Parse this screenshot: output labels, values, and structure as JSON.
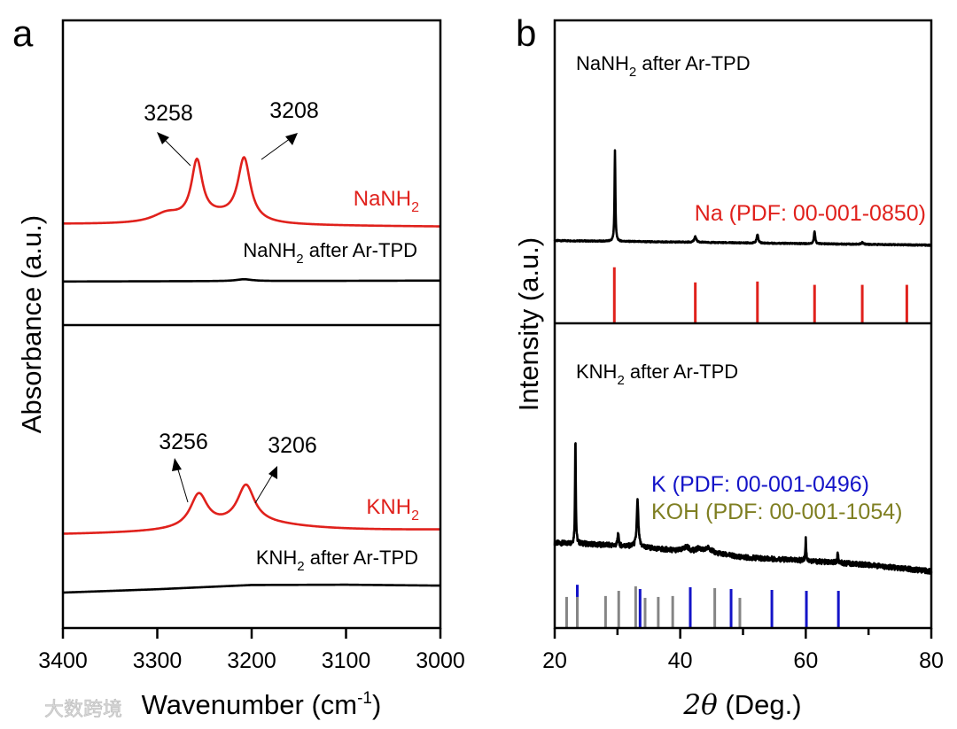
{
  "chart_data": [
    {
      "panel": "a",
      "type": "line",
      "xlabel": {
        "main": "Wavenumber (cm",
        "sup": "-1",
        "close": ")"
      },
      "ylabel": "Absorbance (a.u.)",
      "xlim": [
        3400,
        3000
      ],
      "xticks": [
        3400,
        3300,
        3200,
        3100,
        3000
      ],
      "colors": {
        "sample": "#e0211c",
        "after": "#000000"
      },
      "subplots": [
        {
          "name": "NaNH2",
          "ylim": [
            0,
            1
          ],
          "series": [
            {
              "name": "NaNH2",
              "label": {
                "main": "NaNH",
                "sub": "2",
                "rest": ""
              },
              "color": "#e0211c",
              "baseline_points": [
                [
                  3400,
                  0.331
                ],
                [
                  3000,
                  0.323
                ]
              ],
              "peaks": [
                {
                  "center": 3258,
                  "height": 0.19,
                  "hwhm": 7
                },
                {
                  "center": 3208,
                  "height": 0.205,
                  "hwhm": 8
                },
                {
                  "center": 3290,
                  "height": 0.03,
                  "hwhm": 18
                },
                {
                  "center": 3235,
                  "height": 0.025,
                  "hwhm": 30
                }
              ]
            },
            {
              "name": "NaNH2 after Ar-TPD",
              "label": {
                "main": "NaNH",
                "sub": "2",
                "rest": " after Ar-TPD"
              },
              "color": "#000000",
              "baseline_points": [
                [
                  3400,
                  0.143
                ],
                [
                  3000,
                  0.146
                ]
              ],
              "peaks": [
                {
                  "center": 3208,
                  "height": 0.006,
                  "hwhm": 10
                }
              ]
            }
          ],
          "annotations": [
            {
              "text": "3258",
              "peak": 3258
            },
            {
              "text": "3208",
              "peak": 3208
            }
          ]
        },
        {
          "name": "KNH2",
          "ylim": [
            0,
            1
          ],
          "series": [
            {
              "name": "KNH2",
              "label": {
                "main": "KNH",
                "sub": "2",
                "rest": ""
              },
              "color": "#e0211c",
              "baseline_points": [
                [
                  3400,
                  0.307
                ],
                [
                  3300,
                  0.31
                ],
                [
                  3000,
                  0.322
                ]
              ],
              "peaks": [
                {
                  "center": 3256,
                  "height": 0.11,
                  "hwhm": 11
                },
                {
                  "center": 3206,
                  "height": 0.125,
                  "hwhm": 11
                },
                {
                  "center": 3200,
                  "height": 0.03,
                  "hwhm": 70
                }
              ]
            },
            {
              "name": "KNH2 after Ar-TPD",
              "label": {
                "main": "KNH",
                "sub": "2",
                "rest": " after Ar-TPD"
              },
              "color": "#000000",
              "baseline_points": [
                [
                  3400,
                  0.117
                ],
                [
                  3300,
                  0.128
                ],
                [
                  3200,
                  0.142
                ],
                [
                  3100,
                  0.143
                ],
                [
                  3000,
                  0.14
                ]
              ],
              "peaks": []
            }
          ],
          "annotations": [
            {
              "text": "3256",
              "peak": 3256
            },
            {
              "text": "3206",
              "peak": 3206
            }
          ]
        }
      ]
    },
    {
      "panel": "b",
      "type": "line",
      "xlabel": {
        "symbol": "2θ",
        "rest": " (Deg.)"
      },
      "ylabel": "Intensity (a.u.)",
      "xlim": [
        20,
        80
      ],
      "xticks": [
        20,
        30,
        40,
        50,
        60,
        70,
        80
      ],
      "xticklabels": [
        "20",
        "",
        "40",
        "",
        "60",
        "",
        "80"
      ],
      "subplots": [
        {
          "name": "NaNH2 after Ar-TPD",
          "ylim": [
            0,
            1
          ],
          "title": {
            "main": "NaNH",
            "sub": "2",
            "rest": " after Ar-TPD"
          },
          "series": [
            {
              "name": "NaNH2 after Ar-TPD",
              "color": "#000000",
              "noise": 0.002,
              "baseline_points": [
                [
                  20,
                  0.273
                ],
                [
                  80,
                  0.258
                ]
              ],
              "peaks": [
                {
                  "center": 29.6,
                  "height": 0.3,
                  "hwhm": 0.08
                },
                {
                  "center": 42.4,
                  "height": 0.018,
                  "hwhm": 0.2
                },
                {
                  "center": 52.3,
                  "height": 0.028,
                  "hwhm": 0.15
                },
                {
                  "center": 61.4,
                  "height": 0.04,
                  "hwhm": 0.12
                },
                {
                  "center": 69.0,
                  "height": 0.006,
                  "hwhm": 0.2
                }
              ]
            }
          ],
          "references": [
            {
              "name": "Na (PDF: 00-001-0850)",
              "color": "#e0211c",
              "lines": [
                [
                  29.5,
                  0.185
                ],
                [
                  42.4,
                  0.135
                ],
                [
                  52.3,
                  0.138
                ],
                [
                  61.4,
                  0.127
                ],
                [
                  69.0,
                  0.127
                ],
                [
                  76.1,
                  0.127
                ]
              ]
            }
          ]
        },
        {
          "name": "KNH2 after Ar-TPD",
          "ylim": [
            0,
            1
          ],
          "title": {
            "main": "KNH",
            "sub": "2",
            "rest": " after Ar-TPD"
          },
          "series": [
            {
              "name": "KNH2 after Ar-TPD",
              "color": "#000000",
              "noise": 0.008,
              "baseline_points": [
                [
                  20,
                  0.279
                ],
                [
                  25,
                  0.276
                ],
                [
                  33,
                  0.267
                ],
                [
                  40,
                  0.253
                ],
                [
                  45,
                  0.247
                ],
                [
                  50,
                  0.232
                ],
                [
                  60,
                  0.221
                ],
                [
                  70,
                  0.207
                ],
                [
                  80,
                  0.186
                ]
              ],
              "peaks": [
                {
                  "center": 23.3,
                  "height": 0.36,
                  "hwhm": 0.07
                },
                {
                  "center": 30.1,
                  "height": 0.04,
                  "hwhm": 0.1
                },
                {
                  "center": 33.2,
                  "height": 0.15,
                  "hwhm": 0.15
                },
                {
                  "center": 41.0,
                  "height": 0.015,
                  "hwhm": 0.5
                },
                {
                  "center": 43.0,
                  "height": 0.012,
                  "hwhm": 0.4
                },
                {
                  "center": 44.5,
                  "height": 0.015,
                  "hwhm": 0.5
                },
                {
                  "center": 60.0,
                  "height": 0.07,
                  "hwhm": 0.08
                },
                {
                  "center": 65.1,
                  "height": 0.03,
                  "hwhm": 0.1
                }
              ]
            }
          ],
          "references": [
            {
              "name": "K (PDF: 00-001-0496)",
              "color": "#1414c8",
              "lines": [
                [
                  23.6,
                  0.142
                ],
                [
                  33.6,
                  0.128
                ],
                [
                  41.6,
                  0.134
                ],
                [
                  48.1,
                  0.128
                ],
                [
                  54.6,
                  0.125
                ],
                [
                  60.1,
                  0.122
                ],
                [
                  65.2,
                  0.122
                ]
              ]
            },
            {
              "name": "KOH (PDF: 00-001-1054)",
              "color": "#858585",
              "label_color": "#7f7f22",
              "lines": [
                [
                  21.9,
                  0.102
                ],
                [
                  23.6,
                  0.102
                ],
                [
                  28.1,
                  0.105
                ],
                [
                  30.2,
                  0.122
                ],
                [
                  32.9,
                  0.137
                ],
                [
                  34.4,
                  0.099
                ],
                [
                  36.5,
                  0.102
                ],
                [
                  38.8,
                  0.105
                ],
                [
                  45.5,
                  0.131
                ],
                [
                  49.5,
                  0.099
                ]
              ]
            }
          ]
        }
      ]
    }
  ],
  "panel_labels": [
    "a",
    "b"
  ],
  "watermark": "大数跨境"
}
